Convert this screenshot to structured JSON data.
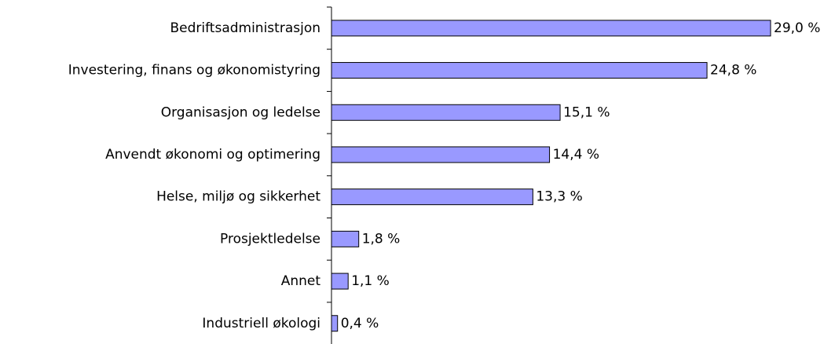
{
  "chart_data": {
    "type": "bar",
    "orientation": "horizontal",
    "categories": [
      "Bedriftsadministrasjon",
      "Investering, finans og økonomistyring",
      "Organisasjon og ledelse",
      "Anvendt økonomi og optimering",
      "Helse, miljø og sikkerhet",
      "Prosjektledelse",
      "Annet",
      "Industriell økologi"
    ],
    "values": [
      29.0,
      24.8,
      15.1,
      14.4,
      13.3,
      1.8,
      1.1,
      0.4
    ],
    "value_labels": [
      "29,0 %",
      "24,8 %",
      "15,1 %",
      "14,4 %",
      "13,3 %",
      "1,8 %",
      "1,1 %",
      "0,4 %"
    ],
    "color": "#9999ff"
  }
}
